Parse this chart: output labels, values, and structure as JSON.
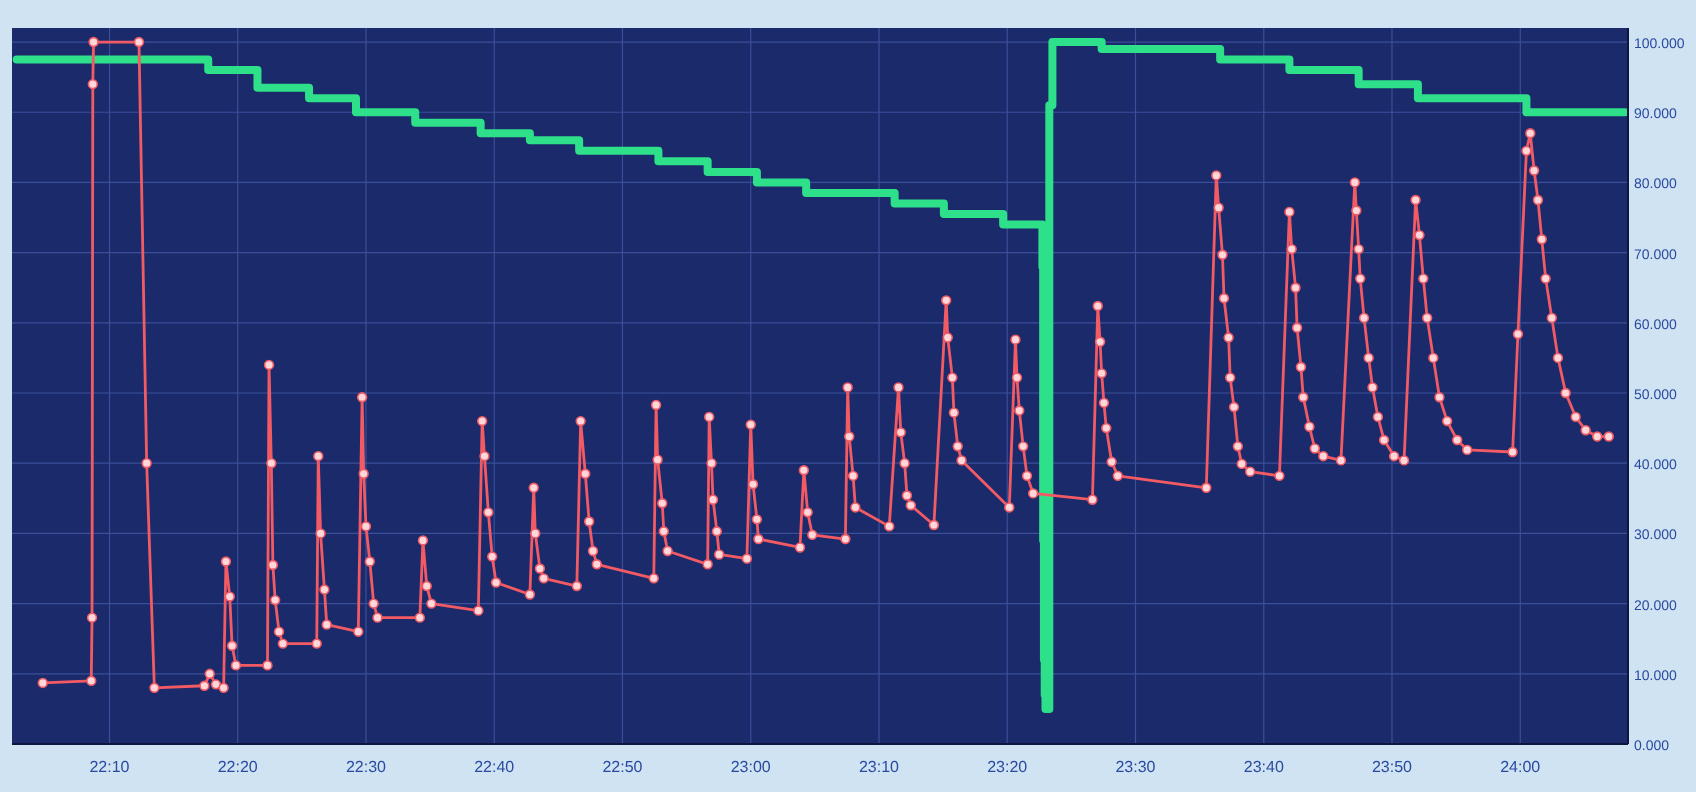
{
  "chart_data": {
    "type": "line",
    "xlim": [
      22.04,
      24.14
    ],
    "ylim": [
      0,
      102
    ],
    "xticks": [
      {
        "value": 22.1667,
        "label": "22:10"
      },
      {
        "value": 22.3333,
        "label": "22:20"
      },
      {
        "value": 22.5,
        "label": "22:30"
      },
      {
        "value": 22.6667,
        "label": "22:40"
      },
      {
        "value": 22.8333,
        "label": "22:50"
      },
      {
        "value": 23,
        "label": "23:00"
      },
      {
        "value": 23.1667,
        "label": "23:10"
      },
      {
        "value": 23.3333,
        "label": "23:20"
      },
      {
        "value": 23.5,
        "label": "23:30"
      },
      {
        "value": 23.6667,
        "label": "23:40"
      },
      {
        "value": 23.8333,
        "label": "23:50"
      },
      {
        "value": 24,
        "label": "24:00"
      }
    ],
    "yticks": [
      {
        "value": 0,
        "label": "0.000"
      },
      {
        "value": 10,
        "label": "10.000"
      },
      {
        "value": 20,
        "label": "20.000"
      },
      {
        "value": 30,
        "label": "30.000"
      },
      {
        "value": 40,
        "label": "40.000"
      },
      {
        "value": 50,
        "label": "50.000"
      },
      {
        "value": 60,
        "label": "60.000"
      },
      {
        "value": 70,
        "label": "70.000"
      },
      {
        "value": 80,
        "label": "80.000"
      },
      {
        "value": 90,
        "label": "90.000"
      },
      {
        "value": 100,
        "label": "100.000"
      }
    ],
    "grid": true,
    "series": [
      {
        "type": "step",
        "marker": "none",
        "color": "#2ee08a",
        "x": [
          22.046,
          22.295,
          22.359,
          22.426,
          22.487,
          22.564,
          22.649,
          22.713,
          22.777,
          22.88,
          22.944,
          23.008,
          23.072,
          23.187,
          23.251,
          23.328,
          23.379,
          23.38,
          23.381,
          23.382,
          23.383,
          23.388,
          23.392,
          23.456,
          23.61,
          23.7,
          23.79,
          23.867,
          24.008,
          24.136
        ],
        "values": [
          97.5,
          96,
          93.5,
          92,
          90,
          88.5,
          87,
          86,
          84.5,
          83,
          81.5,
          80,
          78.5,
          77,
          75.5,
          74,
          68,
          29,
          12,
          7,
          5,
          91,
          100,
          99,
          97.5,
          96,
          94,
          92,
          90,
          90
        ]
      },
      {
        "marker": "circle",
        "color": "#f25a64",
        "x": [
          22.08,
          22.143,
          22.144,
          22.145,
          22.146,
          22.205,
          22.215,
          22.225,
          22.29,
          22.297,
          22.305,
          22.315,
          22.318,
          22.323,
          22.326,
          22.331,
          22.372,
          22.374,
          22.377,
          22.379,
          22.382,
          22.387,
          22.392,
          22.436,
          22.438,
          22.441,
          22.446,
          22.449,
          22.49,
          22.495,
          22.497,
          22.5,
          22.505,
          22.51,
          22.515,
          22.57,
          22.574,
          22.579,
          22.585,
          22.646,
          22.651,
          22.654,
          22.659,
          22.664,
          22.669,
          22.713,
          22.718,
          22.72,
          22.726,
          22.731,
          22.774,
          22.779,
          22.785,
          22.79,
          22.795,
          22.8,
          22.874,
          22.877,
          22.879,
          22.885,
          22.887,
          22.892,
          22.944,
          22.946,
          22.949,
          22.951,
          22.956,
          22.959,
          22.995,
          23.0,
          23.003,
          23.008,
          23.01,
          23.064,
          23.069,
          23.074,
          23.08,
          23.123,
          23.126,
          23.128,
          23.133,
          23.136,
          23.18,
          23.192,
          23.195,
          23.2,
          23.203,
          23.208,
          23.238,
          23.254,
          23.256,
          23.262,
          23.264,
          23.269,
          23.274,
          23.336,
          23.344,
          23.346,
          23.349,
          23.354,
          23.359,
          23.367,
          23.444,
          23.451,
          23.454,
          23.456,
          23.459,
          23.462,
          23.469,
          23.477,
          23.592,
          23.605,
          23.608,
          23.613,
          23.615,
          23.621,
          23.623,
          23.628,
          23.633,
          23.638,
          23.649,
          23.687,
          23.7,
          23.703,
          23.708,
          23.71,
          23.715,
          23.718,
          23.726,
          23.733,
          23.744,
          23.767,
          23.785,
          23.787,
          23.79,
          23.792,
          23.797,
          23.803,
          23.808,
          23.815,
          23.823,
          23.836,
          23.849,
          23.864,
          23.869,
          23.874,
          23.879,
          23.887,
          23.895,
          23.905,
          23.918,
          23.931,
          23.99,
          23.997,
          24.008,
          24.013,
          24.018,
          24.023,
          24.028,
          24.033,
          24.041,
          24.049,
          24.059,
          24.072,
          24.085,
          24.1,
          24.115
        ],
        "values": [
          8.7,
          9,
          18,
          94,
          100,
          100,
          40,
          8,
          8.3,
          10,
          8.5,
          8,
          26,
          21,
          14,
          11.2,
          11.2,
          54,
          40,
          25.5,
          20.5,
          16,
          14.3,
          14.3,
          41,
          30,
          22,
          17,
          16,
          49.4,
          38.5,
          31,
          26,
          20,
          18,
          18,
          29,
          22.5,
          20,
          19,
          46,
          41,
          33,
          26.7,
          23,
          21.3,
          36.5,
          30,
          25,
          23.6,
          22.5,
          46,
          38.5,
          31.7,
          27.5,
          25.6,
          23.6,
          48.3,
          40.5,
          34.3,
          30.3,
          27.5,
          25.6,
          46.6,
          40,
          34.8,
          30.3,
          27,
          26.4,
          45.5,
          37,
          32,
          29.2,
          28,
          39,
          33,
          29.8,
          29.2,
          50.8,
          43.8,
          38.2,
          33.7,
          31,
          50.8,
          44.4,
          40,
          35.4,
          34,
          31.2,
          63.2,
          57.9,
          52.2,
          47.2,
          42.4,
          40.4,
          33.7,
          57.6,
          52.2,
          47.5,
          42.4,
          38.2,
          35.7,
          34.8,
          62.4,
          57.3,
          52.8,
          48.6,
          45,
          40.2,
          38.2,
          36.5,
          81,
          76.4,
          69.7,
          63.5,
          57.9,
          52.2,
          48,
          42.4,
          39.9,
          38.8,
          38.2,
          75.8,
          70.5,
          65,
          59.3,
          53.7,
          49.4,
          45.2,
          42.1,
          41,
          40.4,
          80,
          76,
          70.5,
          66.3,
          60.7,
          55,
          50.8,
          46.6,
          43.3,
          41,
          40.4,
          77.5,
          72.5,
          66.3,
          60.7,
          55,
          49.4,
          46,
          43.3,
          41.9,
          41.6,
          58.4,
          84.5,
          87,
          81.7,
          77.5,
          71.9,
          66.3,
          60.7,
          55,
          50,
          46.6,
          44.7,
          43.8,
          43.8
        ]
      }
    ]
  }
}
